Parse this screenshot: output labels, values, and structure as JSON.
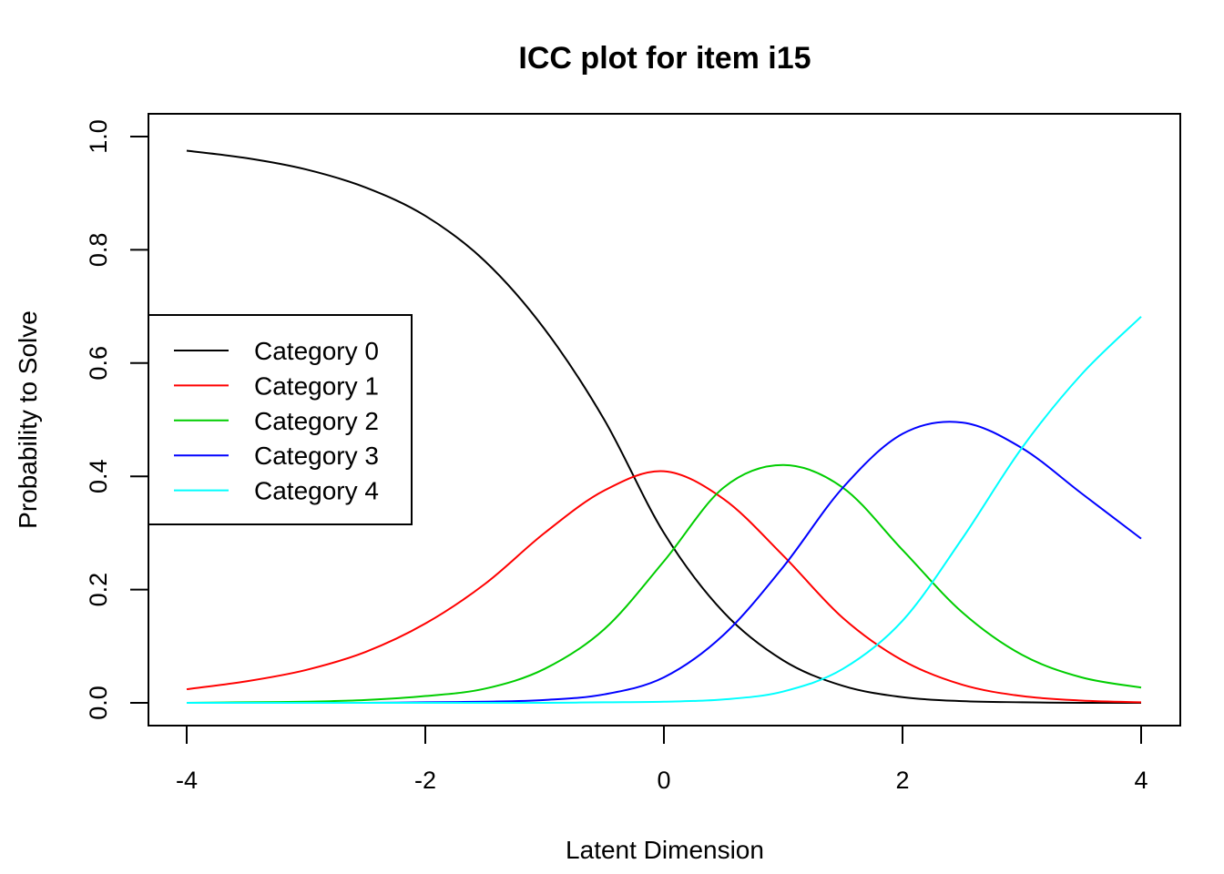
{
  "chart_data": {
    "type": "line",
    "title": "ICC plot for item i15",
    "xlabel": "Latent Dimension",
    "ylabel": "Probability to Solve",
    "xlim": [
      -4,
      4
    ],
    "ylim": [
      0,
      1
    ],
    "x_ticks": [
      -4,
      -2,
      0,
      2,
      4
    ],
    "y_ticks": [
      0.0,
      0.2,
      0.4,
      0.6,
      0.8,
      1.0
    ],
    "x_tick_labels": [
      "-4",
      "-2",
      "0",
      "2",
      "4"
    ],
    "y_tick_labels": [
      "0.0",
      "0.2",
      "0.4",
      "0.6",
      "0.8",
      "1.0"
    ],
    "grid": false,
    "legend_position": "left",
    "x": [
      -4,
      -3.5,
      -3,
      -2.5,
      -2,
      -1.5,
      -1,
      -0.5,
      0,
      0.5,
      1,
      1.5,
      2,
      2.5,
      3,
      3.5,
      4
    ],
    "series": [
      {
        "name": "Category 0",
        "color": "#000000",
        "values": [
          0.975,
          0.962,
          0.942,
          0.91,
          0.86,
          0.78,
          0.66,
          0.5,
          0.3,
          0.16,
          0.075,
          0.03,
          0.01,
          0.003,
          0.001,
          0.0,
          0.0
        ]
      },
      {
        "name": "Category 1",
        "color": "#ff0000",
        "values": [
          0.024,
          0.038,
          0.058,
          0.09,
          0.14,
          0.21,
          0.3,
          0.375,
          0.409,
          0.36,
          0.26,
          0.15,
          0.075,
          0.032,
          0.012,
          0.004,
          0.001
        ]
      },
      {
        "name": "Category 2",
        "color": "#00cd00",
        "values": [
          0.0,
          0.001,
          0.002,
          0.005,
          0.012,
          0.025,
          0.06,
          0.13,
          0.25,
          0.38,
          0.42,
          0.38,
          0.27,
          0.16,
          0.085,
          0.045,
          0.027
        ]
      },
      {
        "name": "Category 3",
        "color": "#0000ff",
        "values": [
          0.0,
          0.0,
          0.0,
          0.0,
          0.001,
          0.002,
          0.005,
          0.015,
          0.045,
          0.12,
          0.24,
          0.38,
          0.475,
          0.495,
          0.45,
          0.37,
          0.29
        ]
      },
      {
        "name": "Category 4",
        "color": "#00ffff",
        "values": [
          0.0,
          0.0,
          0.0,
          0.0,
          0.0,
          0.0,
          0.0,
          0.001,
          0.002,
          0.006,
          0.02,
          0.06,
          0.145,
          0.29,
          0.45,
          0.58,
          0.682
        ]
      }
    ]
  }
}
